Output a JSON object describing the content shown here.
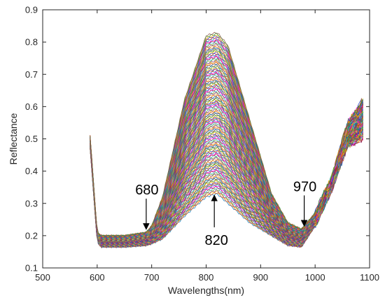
{
  "chart_data": {
    "type": "line",
    "title": "",
    "xlabel": "Wavelengths(nm)",
    "ylabel": "Reflectance",
    "xlim": [
      500,
      1100
    ],
    "ylim": [
      0.1,
      0.9
    ],
    "xticks": [
      500,
      600,
      700,
      800,
      900,
      1000,
      1100
    ],
    "yticks": [
      0.1,
      0.2,
      0.3,
      0.4,
      0.5,
      0.6,
      0.7,
      0.8,
      0.9
    ],
    "xtick_labels": [
      "500",
      "600",
      "700",
      "800",
      "900",
      "1000",
      "1100"
    ],
    "ytick_labels": [
      "0.1",
      "0.2",
      "0.3",
      "0.4",
      "0.5",
      "0.6",
      "0.7",
      "0.8",
      "0.9"
    ],
    "grid": false,
    "legend": "none",
    "series_count_note": "many overlapping reflectance spectra",
    "x": [
      587,
      600,
      607,
      650,
      690,
      700,
      720,
      760,
      800,
      820,
      840,
      880,
      920,
      950,
      975,
      1000,
      1030,
      1060,
      1088
    ],
    "series_envelope": {
      "max": [
        0.51,
        0.21,
        0.2,
        0.2,
        0.21,
        0.23,
        0.32,
        0.62,
        0.82,
        0.83,
        0.79,
        0.56,
        0.33,
        0.24,
        0.22,
        0.27,
        0.38,
        0.55,
        0.62
      ],
      "min": [
        0.47,
        0.18,
        0.165,
        0.165,
        0.17,
        0.175,
        0.19,
        0.26,
        0.32,
        0.33,
        0.3,
        0.24,
        0.2,
        0.17,
        0.165,
        0.23,
        0.34,
        0.48,
        0.5
      ]
    },
    "annotations": [
      {
        "text": "680",
        "x": 690,
        "y": 0.215,
        "direction": "down"
      },
      {
        "text": "820",
        "x": 815,
        "y": 0.33,
        "direction": "up"
      },
      {
        "text": "970",
        "x": 980,
        "y": 0.225,
        "direction": "down"
      }
    ],
    "colors": [
      "#0072BD",
      "#D95319",
      "#EDB120",
      "#7E2F8E",
      "#77AC30",
      "#4DBEEE",
      "#A2142F",
      "#FF00FF",
      "#00A0A0",
      "#E0301E",
      "#1F3FBF",
      "#FFB000",
      "#2CA02C",
      "#8C564B"
    ]
  }
}
